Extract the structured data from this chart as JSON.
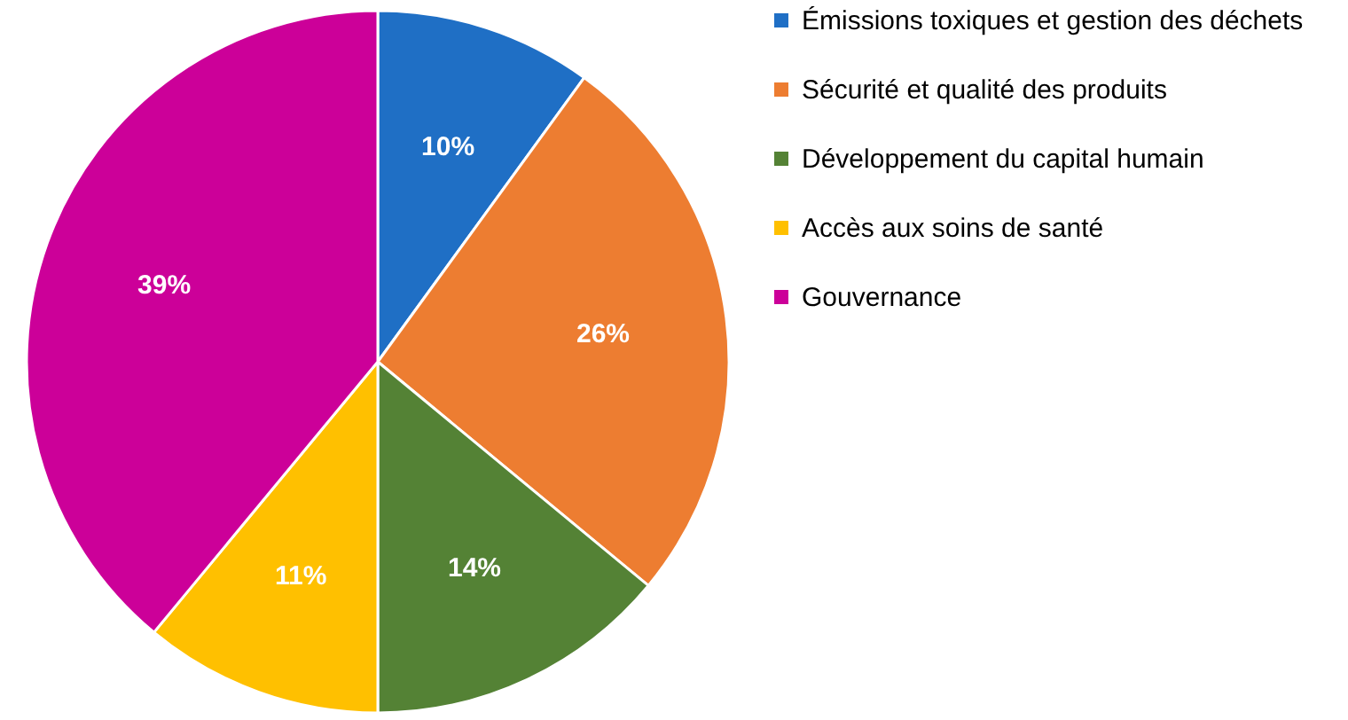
{
  "chart_data": {
    "type": "pie",
    "categories": [
      "Émissions toxiques et gestion des déchets",
      "Sécurité et qualité des produits",
      "Développement du capital humain",
      "Accès aux soins de santé",
      "Gouvernance"
    ],
    "values": [
      10,
      26,
      14,
      11,
      39
    ],
    "colors": [
      "#1f6fc5",
      "#ed7d31",
      "#548235",
      "#ffc000",
      "#cc0099"
    ],
    "value_labels": [
      "10%",
      "26%",
      "14%",
      "11%",
      "39%"
    ],
    "legend": "right"
  }
}
